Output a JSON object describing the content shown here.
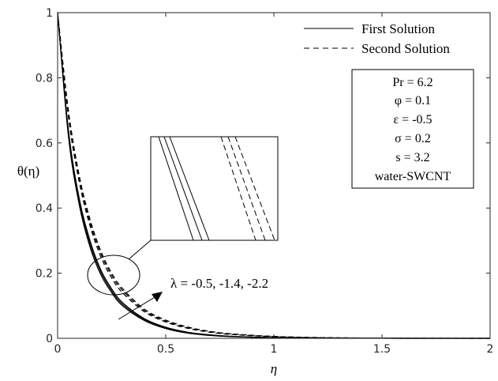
{
  "chart_data": {
    "type": "line",
    "xlabel": "η",
    "ylabel": "θ(η)",
    "xlim": [
      0,
      2
    ],
    "ylim": [
      0,
      1
    ],
    "xticks": [
      "0",
      "0.5",
      "1",
      "1.5",
      "2"
    ],
    "yticks": [
      "0",
      "0.2",
      "0.4",
      "0.6",
      "0.8",
      "1"
    ],
    "grid": false,
    "legend_position": "top-right",
    "legend": [
      {
        "label": "First Solution",
        "style": "solid"
      },
      {
        "label": "Second Solution",
        "style": "dashed"
      }
    ],
    "parameter_box": [
      "Pr = 6.2",
      "φ = 0.1",
      "ε = -0.5",
      "σ = 0.2",
      "s = 3.2",
      "water-SWCNT"
    ],
    "annotation": "λ = -0.5, -1.4, -2.2",
    "x": [
      0,
      0.05,
      0.1,
      0.15,
      0.2,
      0.25,
      0.3,
      0.4,
      0.5,
      0.6,
      0.7,
      0.8,
      1.0,
      1.2,
      1.5,
      2.0
    ],
    "series": [
      {
        "name": "First Solution",
        "style": "solid",
        "values": [
          1.0,
          0.62,
          0.41,
          0.28,
          0.195,
          0.14,
          0.1,
          0.055,
          0.03,
          0.016,
          0.009,
          0.005,
          0.0015,
          0.0005,
          0.0001,
          0.0
        ]
      },
      {
        "name": "First Solution",
        "style": "solid",
        "values": [
          1.0,
          0.63,
          0.42,
          0.29,
          0.203,
          0.146,
          0.105,
          0.058,
          0.032,
          0.018,
          0.01,
          0.006,
          0.0018,
          0.0006,
          0.0001,
          0.0
        ]
      },
      {
        "name": "First Solution",
        "style": "solid",
        "values": [
          1.0,
          0.64,
          0.43,
          0.3,
          0.21,
          0.152,
          0.11,
          0.061,
          0.034,
          0.019,
          0.011,
          0.006,
          0.002,
          0.0007,
          0.0001,
          0.0
        ]
      },
      {
        "name": "Second Solution",
        "style": "dashed",
        "values": [
          1.0,
          0.68,
          0.48,
          0.345,
          0.25,
          0.185,
          0.14,
          0.082,
          0.05,
          0.031,
          0.019,
          0.012,
          0.005,
          0.002,
          0.0005,
          0.0
        ]
      },
      {
        "name": "Second Solution",
        "style": "dashed",
        "values": [
          1.0,
          0.69,
          0.49,
          0.355,
          0.26,
          0.193,
          0.147,
          0.086,
          0.053,
          0.033,
          0.021,
          0.013,
          0.0055,
          0.0022,
          0.0006,
          0.0
        ]
      },
      {
        "name": "Second Solution",
        "style": "dashed",
        "values": [
          1.0,
          0.7,
          0.5,
          0.365,
          0.268,
          0.2,
          0.153,
          0.09,
          0.056,
          0.035,
          0.022,
          0.014,
          0.006,
          0.0025,
          0.0007,
          0.0
        ]
      }
    ]
  }
}
